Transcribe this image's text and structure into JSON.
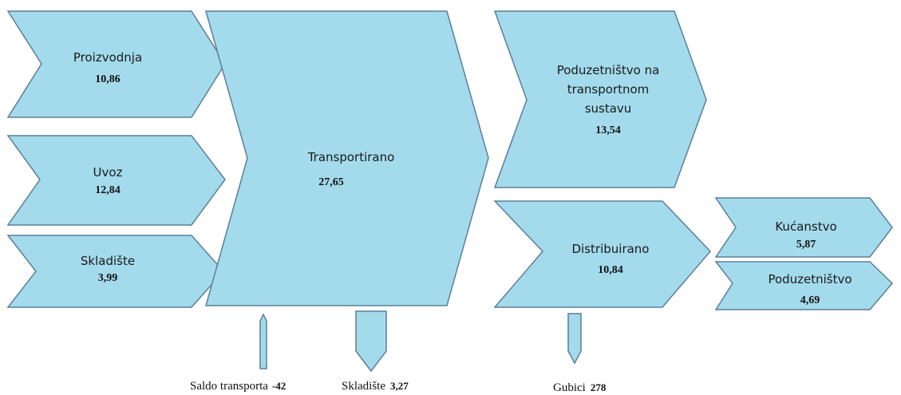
{
  "nodes": [
    {
      "label": "Proizvodnja",
      "value": "10,86"
    },
    {
      "label": "Uvoz",
      "value": "12,84"
    },
    {
      "label": "Skladište",
      "value": "3,99"
    },
    {
      "label": "Transportirano",
      "value": "27,65"
    },
    {
      "label": [
        "Poduzetništvo na",
        "transportnom",
        "sustavu"
      ],
      "value": "13,54"
    },
    {
      "label": "Distribuirano",
      "value": "10,84"
    },
    {
      "label": "Kućanstvo",
      "value": "5,87"
    },
    {
      "label": "Poduzetništvo",
      "value": "4,69"
    }
  ],
  "outflows": [
    {
      "label": "Saldo transporta",
      "value": "-42"
    },
    {
      "label": "Skladište",
      "value": "3,27"
    },
    {
      "label": "Gubici",
      "value": "278"
    }
  ]
}
